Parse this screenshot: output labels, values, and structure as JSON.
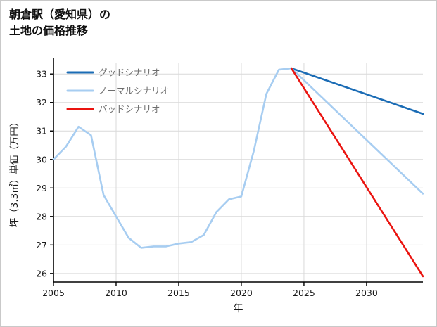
{
  "header": {
    "title_line1": "朝倉駅（愛知県）の",
    "title_line2": "土地の価格推移"
  },
  "chart_data": {
    "type": "line",
    "title": "朝倉駅（愛知県）の土地の価格推移",
    "xlabel": "年",
    "ylabel": "坪（3.3㎡）単価（万円）",
    "xlim": [
      2005,
      2034.5
    ],
    "ylim": [
      25.7,
      33.4
    ],
    "xticks": [
      2005,
      2010,
      2015,
      2020,
      2025,
      2030
    ],
    "yticks": [
      26,
      27,
      28,
      29,
      30,
      31,
      32,
      33
    ],
    "grid": true,
    "legend_position": "top-left-inside",
    "colors": {
      "good": "#1b6cb5",
      "normal": "#a7cdf1",
      "bad": "#ea1410",
      "grid": "#d9d9d9",
      "axis": "#000000",
      "tick_label": "#1a1a1a",
      "legend_text": "#6e6e6e"
    },
    "legend": [
      {
        "label": "グッドシナリオ",
        "series": "good"
      },
      {
        "label": "ノーマルシナリオ",
        "series": "normal"
      },
      {
        "label": "バッドシナリオ",
        "series": "bad"
      }
    ],
    "series": [
      {
        "name": "history",
        "color_key": "normal",
        "x": [
          2005,
          2006,
          2007,
          2008,
          2009,
          2010,
          2011,
          2012,
          2013,
          2014,
          2015,
          2016,
          2017,
          2018,
          2019,
          2020,
          2021,
          2022,
          2023,
          2024
        ],
        "y": [
          30.0,
          30.45,
          31.15,
          30.85,
          28.75,
          28.0,
          27.25,
          26.9,
          26.95,
          26.95,
          27.05,
          27.1,
          27.35,
          28.15,
          28.6,
          28.7,
          30.3,
          32.3,
          33.15,
          33.2
        ]
      },
      {
        "name": "good",
        "color_key": "good",
        "x": [
          2024,
          2034.5
        ],
        "y": [
          33.2,
          31.6
        ]
      },
      {
        "name": "normal",
        "color_key": "normal",
        "x": [
          2024,
          2034.5
        ],
        "y": [
          33.2,
          28.8
        ]
      },
      {
        "name": "bad",
        "color_key": "bad",
        "x": [
          2024,
          2034.5
        ],
        "y": [
          33.2,
          25.9
        ]
      }
    ]
  }
}
